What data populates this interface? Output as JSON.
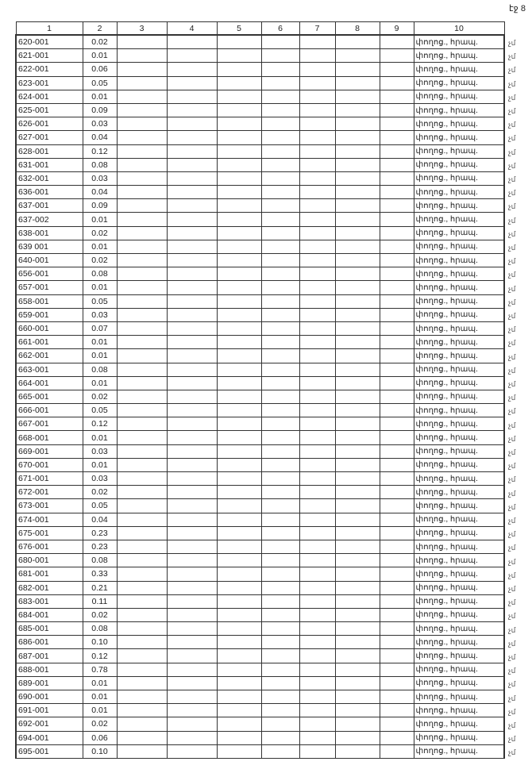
{
  "page_number": "էջ 8",
  "headers": [
    "1",
    "2",
    "3",
    "4",
    "5",
    "6",
    "7",
    "8",
    "9",
    "10"
  ],
  "street": "փողոց., հրապ.",
  "margin_mark": "չմ",
  "rows": [
    [
      "620-001",
      "0.02"
    ],
    [
      "621-001",
      "0.01"
    ],
    [
      "622-001",
      "0.06"
    ],
    [
      "623-001",
      "0.05"
    ],
    [
      "624-001",
      "0.01"
    ],
    [
      "625-001",
      "0.09"
    ],
    [
      "626-001",
      "0.03"
    ],
    [
      "627-001",
      "0.04"
    ],
    [
      "628-001",
      "0.12"
    ],
    [
      "631-001",
      "0.08"
    ],
    [
      "632-001",
      "0.03"
    ],
    [
      "636-001",
      "0.04"
    ],
    [
      "637-001",
      "0.09"
    ],
    [
      "637-002",
      "0.01"
    ],
    [
      "638-001",
      "0.02"
    ],
    [
      "639 001",
      "0.01"
    ],
    [
      "640-001",
      "0.02"
    ],
    [
      "656-001",
      "0.08"
    ],
    [
      "657-001",
      "0.01"
    ],
    [
      "658-001",
      "0.05"
    ],
    [
      "659-001",
      "0.03"
    ],
    [
      "660-001",
      "0.07"
    ],
    [
      "661-001",
      "0.01"
    ],
    [
      "662-001",
      "0.01"
    ],
    [
      "663-001",
      "0.08"
    ],
    [
      "664-001",
      "0.01"
    ],
    [
      "665-001",
      "0.02"
    ],
    [
      "666-001",
      "0.05"
    ],
    [
      "667-001",
      "0.12"
    ],
    [
      "668-001",
      "0.01"
    ],
    [
      "669-001",
      "0.03"
    ],
    [
      "670-001",
      "0.01"
    ],
    [
      "671-001",
      "0.03"
    ],
    [
      "672-001",
      "0.02"
    ],
    [
      "673-001",
      "0.05"
    ],
    [
      "674-001",
      "0.04"
    ],
    [
      "675-001",
      "0.23"
    ],
    [
      "676-001",
      "0.23"
    ],
    [
      "680-001",
      "0.08"
    ],
    [
      "681-001",
      "0.33"
    ],
    [
      "682-001",
      "0.21"
    ],
    [
      "683-001",
      "0.11"
    ],
    [
      "684-001",
      "0.02"
    ],
    [
      "685-001",
      "0.08"
    ],
    [
      "686-001",
      "0.10"
    ],
    [
      "687-001",
      "0.12"
    ],
    [
      "688-001",
      "0.78"
    ],
    [
      "689-001",
      "0.01"
    ],
    [
      "690-001",
      "0.01"
    ],
    [
      "691-001",
      "0.01"
    ],
    [
      "692-001",
      "0.02"
    ],
    [
      "694-001",
      "0.06"
    ],
    [
      "695-001",
      "0.10"
    ]
  ]
}
